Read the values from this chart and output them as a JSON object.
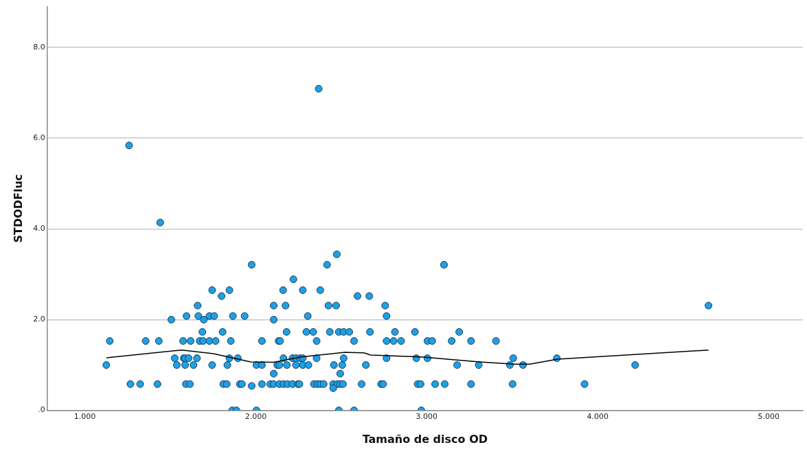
{
  "chart_data": {
    "type": "scatter",
    "xlabel": "Tamaño de disco OD",
    "ylabel": "STDODFluc",
    "xlim": [
      0.78,
      5.2
    ],
    "ylim": [
      0,
      8.9
    ],
    "xticks": [
      {
        "value": 1,
        "label": "1.000"
      },
      {
        "value": 2,
        "label": "2.000"
      },
      {
        "value": 3,
        "label": "3.000"
      },
      {
        "value": 4,
        "label": "4.000"
      },
      {
        "value": 5,
        "label": "5.000"
      }
    ],
    "yticks": [
      {
        "value": 0,
        "label": ".0"
      },
      {
        "value": 2,
        "label": "2.0"
      },
      {
        "value": 4,
        "label": "4.0"
      },
      {
        "value": 6,
        "label": "6.0"
      },
      {
        "value": 8,
        "label": "8.0"
      }
    ],
    "grid": "y",
    "legend": false,
    "marker": "circle",
    "series": [
      {
        "color": "#1ea0e6",
        "x": [
          1.259,
          1.441,
          2.368,
          2.474,
          1.976,
          2.417,
          3.101,
          2.22,
          1.745,
          1.846,
          1.8,
          2.16,
          2.275,
          2.377,
          2.595,
          2.664,
          1.66,
          2.105,
          2.174,
          2.425,
          2.47,
          2.757,
          1.595,
          1.664,
          1.729,
          1.757,
          1.866,
          1.935,
          2.304,
          2.765,
          1.506,
          1.696,
          2.105,
          1.688,
          1.806,
          2.18,
          2.296,
          2.336,
          2.433,
          2.486,
          2.514,
          2.547,
          2.668,
          2.814,
          2.931,
          3.19,
          1.146,
          1.356,
          1.433,
          1.575,
          1.619,
          1.672,
          1.692,
          1.729,
          1.765,
          1.854,
          2.036,
          2.134,
          2.142,
          2.356,
          2.575,
          2.765,
          2.806,
          2.85,
          3.004,
          3.032,
          3.146,
          3.259,
          3.405,
          1.526,
          1.579,
          1.587,
          1.607,
          1.656,
          1.846,
          1.895,
          2.162,
          2.215,
          2.235,
          2.259,
          2.275,
          2.356,
          2.514,
          2.765,
          2.939,
          3.004,
          3.506,
          3.761,
          1.126,
          1.538,
          1.587,
          1.636,
          1.745,
          1.834,
          2.004,
          2.036,
          2.126,
          2.138,
          2.182,
          2.235,
          2.275,
          2.308,
          2.457,
          2.506,
          2.644,
          3.178,
          3.304,
          3.486,
          3.563,
          4.219,
          2.105,
          2.494,
          1.267,
          1.324,
          1.425,
          1.591,
          1.615,
          1.81,
          1.83,
          1.907,
          1.919,
          1.976,
          2.036,
          2.085,
          2.105,
          2.138,
          2.162,
          2.186,
          2.215,
          2.247,
          2.255,
          2.34,
          2.36,
          2.377,
          2.397,
          2.453,
          2.478,
          2.494,
          2.51,
          2.619,
          2.733,
          2.745,
          2.947,
          2.964,
          3.049,
          3.105,
          3.259,
          3.502,
          3.923,
          2.453,
          1.862,
          1.887,
          2.004,
          2.486,
          2.575,
          2.968,
          4.648
        ],
        "values": [
          5.84,
          4.14,
          7.09,
          3.44,
          3.21,
          3.21,
          3.21,
          2.89,
          2.65,
          2.65,
          2.52,
          2.65,
          2.65,
          2.65,
          2.52,
          2.52,
          2.31,
          2.31,
          2.31,
          2.31,
          2.31,
          2.31,
          2.08,
          2.08,
          2.08,
          2.08,
          2.08,
          2.08,
          2.08,
          2.08,
          2.0,
          2.0,
          2.0,
          1.73,
          1.73,
          1.73,
          1.73,
          1.73,
          1.73,
          1.73,
          1.73,
          1.73,
          1.73,
          1.73,
          1.73,
          1.73,
          1.53,
          1.53,
          1.53,
          1.53,
          1.53,
          1.53,
          1.53,
          1.53,
          1.53,
          1.53,
          1.53,
          1.53,
          1.53,
          1.53,
          1.53,
          1.53,
          1.53,
          1.53,
          1.53,
          1.53,
          1.53,
          1.53,
          1.53,
          1.15,
          1.15,
          1.15,
          1.15,
          1.15,
          1.15,
          1.15,
          1.15,
          1.15,
          1.15,
          1.15,
          1.15,
          1.15,
          1.15,
          1.15,
          1.15,
          1.15,
          1.15,
          1.15,
          1.0,
          1.0,
          1.0,
          1.0,
          1.0,
          1.0,
          1.0,
          1.0,
          1.0,
          1.0,
          1.0,
          1.0,
          1.0,
          1.0,
          1.0,
          1.0,
          1.0,
          1.0,
          1.0,
          1.0,
          1.0,
          1.0,
          0.81,
          0.81,
          0.58,
          0.58,
          0.58,
          0.58,
          0.58,
          0.58,
          0.58,
          0.58,
          0.58,
          0.54,
          0.58,
          0.58,
          0.58,
          0.58,
          0.58,
          0.58,
          0.58,
          0.58,
          0.58,
          0.58,
          0.58,
          0.58,
          0.58,
          0.58,
          0.58,
          0.58,
          0.58,
          0.58,
          0.58,
          0.58,
          0.58,
          0.58,
          0.58,
          0.58,
          0.58,
          0.58,
          0.58,
          0.49,
          0,
          0,
          0,
          0,
          0,
          0,
          2.31
        ]
      },
      {
        "type": "line",
        "color": "#000000",
        "marker": "none",
        "line_style": "solid",
        "x": [
          1.126,
          1.567,
          1.753,
          1.97,
          2.105,
          2.267,
          2.522,
          2.632,
          2.672,
          2.968,
          3.308,
          3.51,
          3.603,
          3.765,
          4.648
        ],
        "values": [
          1.16,
          1.33,
          1.25,
          1.07,
          1.06,
          1.18,
          1.28,
          1.27,
          1.22,
          1.18,
          1.07,
          1.02,
          1.02,
          1.13,
          1.33
        ]
      }
    ]
  }
}
